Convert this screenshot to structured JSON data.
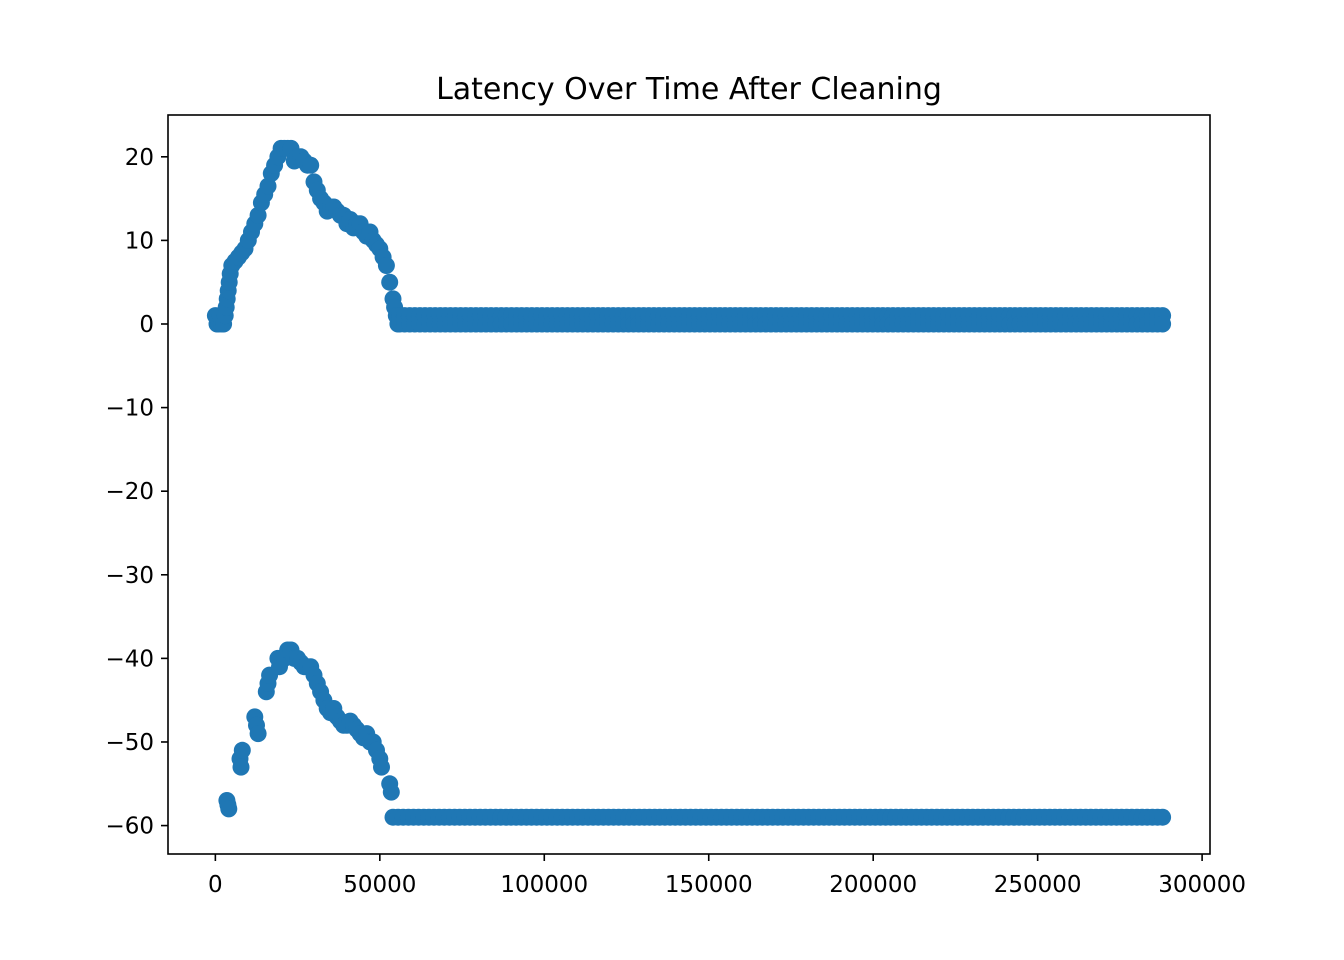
{
  "chart_data": {
    "type": "scatter",
    "title": "Latency Over Time After Cleaning",
    "xlabel": "",
    "ylabel": "",
    "xlim": [
      -14400,
      302400
    ],
    "ylim": [
      -63.4,
      25.0
    ],
    "grid": false,
    "marker_color": "#1f77b4",
    "x_ticks": [
      0,
      50000,
      100000,
      150000,
      200000,
      250000,
      300000
    ],
    "x_tick_labels": [
      "0",
      "50000",
      "100000",
      "150000",
      "200000",
      "250000",
      "300000"
    ],
    "y_ticks": [
      20,
      10,
      0,
      -10,
      -20,
      -30,
      -40,
      -50,
      -60
    ],
    "y_tick_labels": [
      "20",
      "10",
      "0",
      "−10",
      "−20",
      "−30",
      "−40",
      "−50",
      "−60"
    ],
    "series": [
      {
        "points": [
          [
            0,
            1
          ],
          [
            500,
            0
          ],
          [
            1000,
            0
          ],
          [
            1500,
            1
          ],
          [
            2000,
            0
          ],
          [
            2500,
            0
          ],
          [
            3000,
            1
          ],
          [
            3300,
            2
          ],
          [
            3600,
            3
          ],
          [
            3900,
            4
          ],
          [
            4200,
            5
          ],
          [
            4500,
            6
          ],
          [
            5000,
            7
          ],
          [
            6000,
            7.5
          ],
          [
            7000,
            8
          ],
          [
            8000,
            8.5
          ],
          [
            9000,
            9
          ],
          [
            10000,
            10
          ],
          [
            11000,
            11
          ],
          [
            12000,
            12
          ],
          [
            13000,
            13
          ],
          [
            14000,
            14.5
          ],
          [
            15000,
            15.5
          ],
          [
            16000,
            16.5
          ],
          [
            17000,
            18
          ],
          [
            18000,
            19
          ],
          [
            19000,
            20
          ],
          [
            20000,
            21
          ],
          [
            21000,
            21
          ],
          [
            22000,
            21
          ],
          [
            23000,
            21
          ],
          [
            24000,
            19.5
          ],
          [
            25000,
            20
          ],
          [
            26000,
            20
          ],
          [
            27000,
            19.5
          ],
          [
            28000,
            19
          ],
          [
            29000,
            19
          ],
          [
            30000,
            17
          ],
          [
            31000,
            16
          ],
          [
            32000,
            15
          ],
          [
            33000,
            14.5
          ],
          [
            34000,
            13.5
          ],
          [
            35000,
            14
          ],
          [
            36000,
            14
          ],
          [
            37000,
            13.5
          ],
          [
            38000,
            13
          ],
          [
            39000,
            13
          ],
          [
            40000,
            12
          ],
          [
            41000,
            12.5
          ],
          [
            42000,
            11.5
          ],
          [
            43000,
            12
          ],
          [
            44000,
            12
          ],
          [
            45000,
            11
          ],
          [
            46000,
            10.5
          ],
          [
            47000,
            11
          ],
          [
            48000,
            10
          ],
          [
            49000,
            9.5
          ],
          [
            50000,
            9
          ],
          [
            51000,
            8
          ],
          [
            52000,
            7
          ],
          [
            53000,
            5
          ],
          [
            54000,
            3
          ],
          [
            54500,
            2
          ],
          [
            55000,
            1
          ],
          [
            55500,
            0
          ],
          [
            56000,
            0.5
          ]
        ],
        "band": {
          "x_start": 56000,
          "x_end": 288000,
          "y_min": 0,
          "y_max": 1
        }
      },
      {
        "points": [
          [
            3500,
            -57
          ],
          [
            3800,
            -57.5
          ],
          [
            4100,
            -58
          ],
          [
            7500,
            -52
          ],
          [
            7800,
            -53
          ],
          [
            8200,
            -51
          ],
          [
            12000,
            -47
          ],
          [
            12500,
            -48
          ],
          [
            13000,
            -49
          ],
          [
            15500,
            -44
          ],
          [
            16000,
            -43
          ],
          [
            16500,
            -42
          ],
          [
            19000,
            -40
          ],
          [
            19500,
            -41
          ],
          [
            21000,
            -40
          ],
          [
            22000,
            -39
          ],
          [
            23000,
            -39
          ],
          [
            24000,
            -40
          ],
          [
            25000,
            -40
          ],
          [
            26000,
            -40.5
          ],
          [
            27000,
            -41
          ],
          [
            28000,
            -41
          ],
          [
            29000,
            -41
          ],
          [
            30000,
            -42
          ],
          [
            31000,
            -43
          ],
          [
            32000,
            -44
          ],
          [
            33000,
            -45
          ],
          [
            34000,
            -46
          ],
          [
            35000,
            -46.5
          ],
          [
            36000,
            -46
          ],
          [
            37000,
            -47
          ],
          [
            38000,
            -47.5
          ],
          [
            39000,
            -48
          ],
          [
            40000,
            -48
          ],
          [
            41000,
            -47.5
          ],
          [
            42000,
            -48
          ],
          [
            43000,
            -48.5
          ],
          [
            44000,
            -49
          ],
          [
            45000,
            -49.5
          ],
          [
            46000,
            -49
          ],
          [
            47000,
            -50
          ],
          [
            48000,
            -50
          ],
          [
            49000,
            -51
          ],
          [
            50000,
            -52
          ],
          [
            50500,
            -53
          ],
          [
            53000,
            -55
          ],
          [
            53500,
            -56
          ]
        ],
        "band": {
          "x_start": 54000,
          "x_end": 288000,
          "y_min": -59,
          "y_max": -59
        }
      }
    ]
  }
}
